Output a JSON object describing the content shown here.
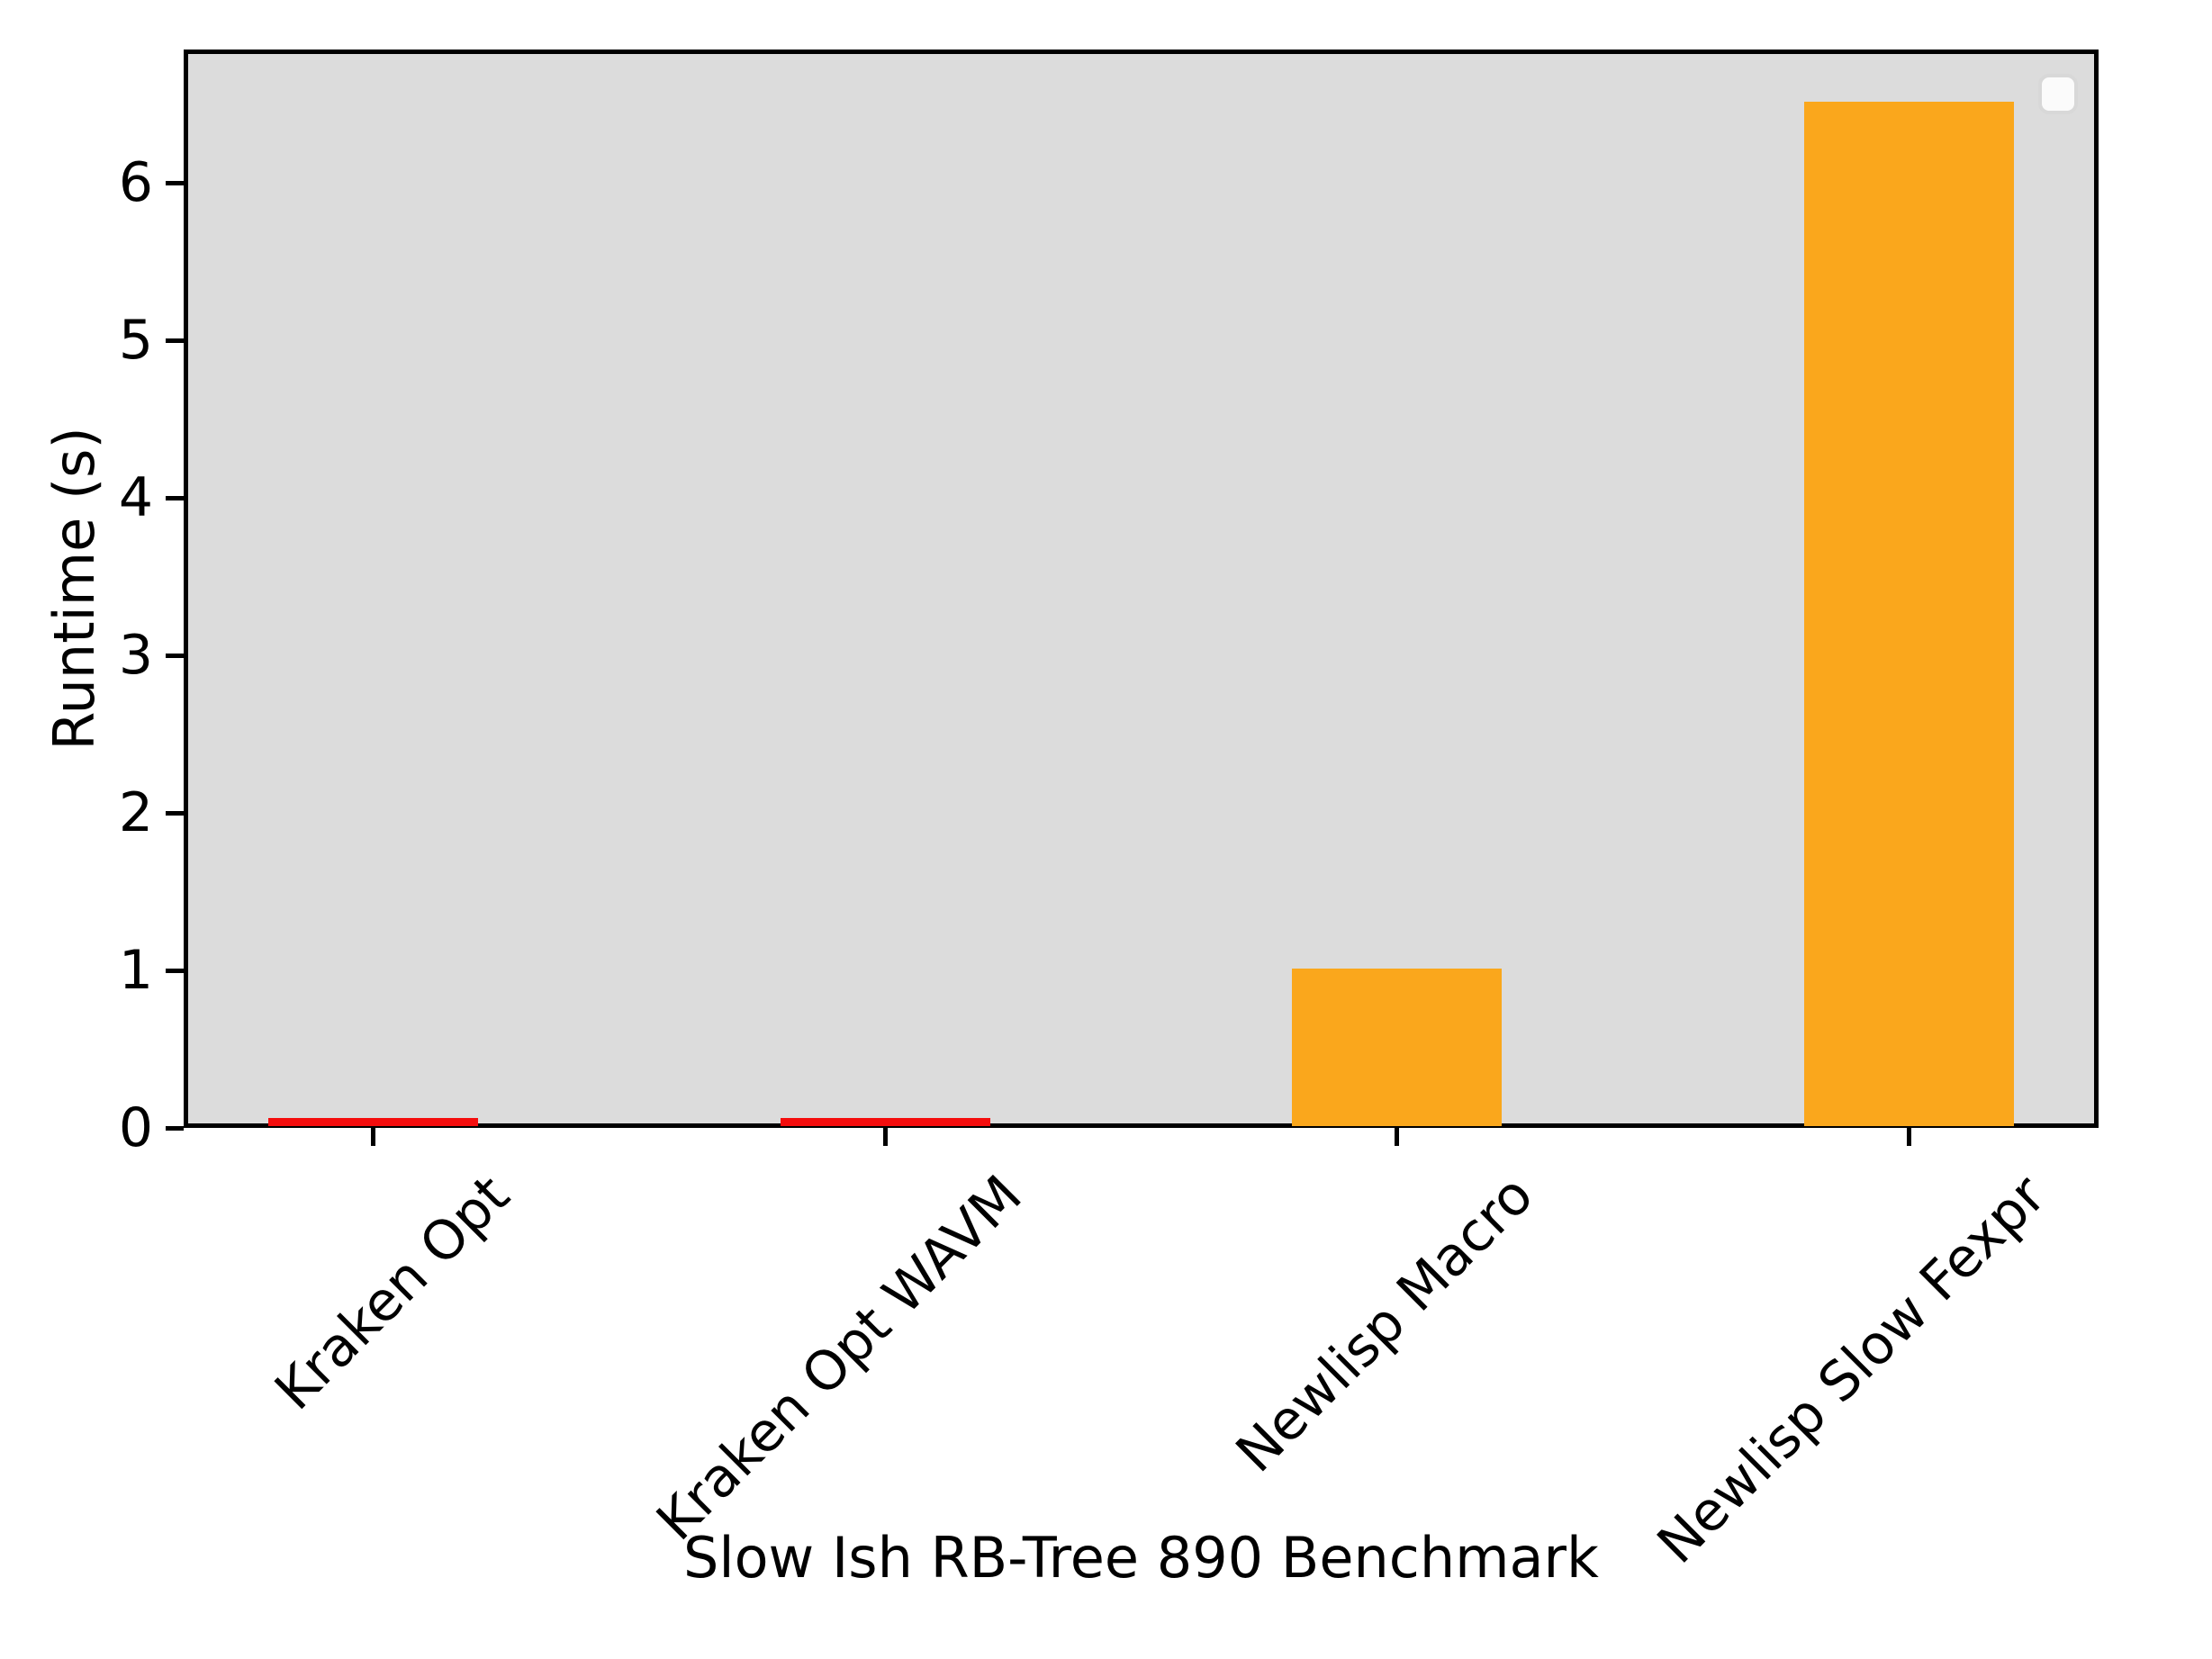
{
  "chart_data": {
    "type": "bar",
    "title": "",
    "xlabel": "Slow Ish RB-Tree 890 Benchmark",
    "ylabel": "Runtime (s)",
    "categories": [
      "Kraken Opt",
      "Kraken Opt WAVM",
      "Newlisp Macro",
      "Newlisp Slow Fexpr"
    ],
    "values": [
      0.05,
      0.05,
      1.0,
      6.5
    ],
    "bar_colors": [
      "#f40d0d",
      "#f40d0d",
      "#faa71c",
      "#faa71c"
    ],
    "yticks": [
      0,
      1,
      2,
      3,
      4,
      5,
      6
    ],
    "ylim": [
      0,
      6.85
    ],
    "grid": false,
    "plot_background": "#dcdcdc",
    "spine_color": "#000000",
    "text_color": "#000000",
    "legend": {
      "visible": true,
      "position": "upper right",
      "entries": [],
      "face_color": "#fbfbfb",
      "edge_color": "#d8d8d8"
    }
  }
}
